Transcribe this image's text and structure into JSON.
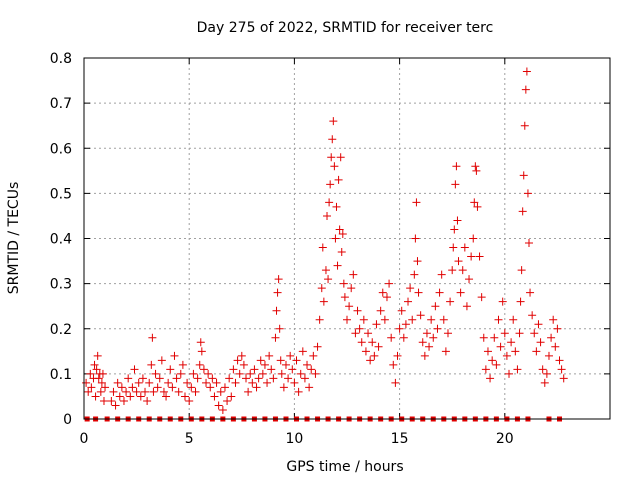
{
  "chart_data": {
    "type": "scatter",
    "title": "Day 275 of 2022, SRMTID for receiver terc",
    "xlabel": "GPS time / hours",
    "ylabel": "SRMTID / TECUs",
    "xlim": [
      0,
      25
    ],
    "ylim": [
      0,
      0.8
    ],
    "xticks": [
      0,
      5,
      10,
      15,
      20
    ],
    "yticks": [
      0,
      0.1,
      0.2,
      0.3,
      0.4,
      0.5,
      0.6,
      0.7,
      0.8
    ],
    "xtick_labels": [
      "0",
      "5",
      "10",
      "15",
      "20"
    ],
    "ytick_labels": [
      "0",
      "0.1",
      "0.2",
      "0.3",
      "0.4",
      "0.5",
      "0.6",
      "0.7",
      "0.8"
    ],
    "grid": true,
    "marker_color": "#e00000",
    "series": [
      {
        "name": "SRMTID",
        "marker": "plus",
        "points": [
          [
            0.1,
            0.08
          ],
          [
            0.2,
            0.06
          ],
          [
            0.3,
            0.1
          ],
          [
            0.35,
            0.07
          ],
          [
            0.45,
            0.09
          ],
          [
            0.5,
            0.12
          ],
          [
            0.55,
            0.05
          ],
          [
            0.6,
            0.11
          ],
          [
            0.65,
            0.14
          ],
          [
            0.7,
            0.09
          ],
          [
            0.75,
            0.1
          ],
          [
            0.8,
            0.06
          ],
          [
            0.85,
            0.08
          ],
          [
            0.9,
            0.1
          ],
          [
            0.95,
            0.04
          ],
          [
            1.0,
            0.07
          ],
          [
            1.3,
            0.04
          ],
          [
            1.4,
            0.06
          ],
          [
            1.5,
            0.03
          ],
          [
            1.6,
            0.08
          ],
          [
            1.7,
            0.05
          ],
          [
            1.8,
            0.07
          ],
          [
            1.9,
            0.04
          ],
          [
            2.0,
            0.06
          ],
          [
            2.1,
            0.09
          ],
          [
            2.2,
            0.05
          ],
          [
            2.3,
            0.07
          ],
          [
            2.4,
            0.11
          ],
          [
            2.5,
            0.06
          ],
          [
            2.6,
            0.08
          ],
          [
            2.7,
            0.05
          ],
          [
            2.8,
            0.09
          ],
          [
            2.9,
            0.06
          ],
          [
            3.0,
            0.04
          ],
          [
            3.1,
            0.08
          ],
          [
            3.2,
            0.12
          ],
          [
            3.25,
            0.18
          ],
          [
            3.3,
            0.06
          ],
          [
            3.4,
            0.1
          ],
          [
            3.5,
            0.07
          ],
          [
            3.6,
            0.09
          ],
          [
            3.7,
            0.13
          ],
          [
            3.8,
            0.06
          ],
          [
            3.9,
            0.05
          ],
          [
            4.0,
            0.08
          ],
          [
            4.1,
            0.11
          ],
          [
            4.2,
            0.07
          ],
          [
            4.3,
            0.14
          ],
          [
            4.4,
            0.09
          ],
          [
            4.5,
            0.06
          ],
          [
            4.6,
            0.1
          ],
          [
            4.7,
            0.12
          ],
          [
            4.8,
            0.05
          ],
          [
            4.9,
            0.08
          ],
          [
            5.0,
            0.04
          ],
          [
            5.1,
            0.07
          ],
          [
            5.2,
            0.1
          ],
          [
            5.3,
            0.06
          ],
          [
            5.4,
            0.09
          ],
          [
            5.5,
            0.12
          ],
          [
            5.55,
            0.17
          ],
          [
            5.6,
            0.15
          ],
          [
            5.7,
            0.11
          ],
          [
            5.8,
            0.08
          ],
          [
            5.9,
            0.1
          ],
          [
            6.0,
            0.07
          ],
          [
            6.1,
            0.09
          ],
          [
            6.2,
            0.05
          ],
          [
            6.3,
            0.08
          ],
          [
            6.4,
            0.03
          ],
          [
            6.5,
            0.06
          ],
          [
            6.6,
            0.02
          ],
          [
            6.7,
            0.07
          ],
          [
            6.8,
            0.04
          ],
          [
            6.9,
            0.09
          ],
          [
            7.0,
            0.05
          ],
          [
            7.1,
            0.11
          ],
          [
            7.2,
            0.08
          ],
          [
            7.3,
            0.13
          ],
          [
            7.4,
            0.1
          ],
          [
            7.5,
            0.14
          ],
          [
            7.6,
            0.12
          ],
          [
            7.7,
            0.09
          ],
          [
            7.8,
            0.06
          ],
          [
            7.9,
            0.1
          ],
          [
            8.0,
            0.08
          ],
          [
            8.1,
            0.11
          ],
          [
            8.2,
            0.07
          ],
          [
            8.3,
            0.09
          ],
          [
            8.4,
            0.13
          ],
          [
            8.5,
            0.1
          ],
          [
            8.6,
            0.12
          ],
          [
            8.7,
            0.08
          ],
          [
            8.8,
            0.14
          ],
          [
            8.9,
            0.11
          ],
          [
            9.0,
            0.09
          ],
          [
            9.1,
            0.18
          ],
          [
            9.15,
            0.24
          ],
          [
            9.2,
            0.28
          ],
          [
            9.25,
            0.31
          ],
          [
            9.3,
            0.2
          ],
          [
            9.35,
            0.13
          ],
          [
            9.4,
            0.1
          ],
          [
            9.5,
            0.07
          ],
          [
            9.6,
            0.12
          ],
          [
            9.7,
            0.09
          ],
          [
            9.8,
            0.14
          ],
          [
            9.9,
            0.11
          ],
          [
            10.0,
            0.08
          ],
          [
            10.1,
            0.13
          ],
          [
            10.2,
            0.06
          ],
          [
            10.3,
            0.1
          ],
          [
            10.4,
            0.15
          ],
          [
            10.5,
            0.09
          ],
          [
            10.6,
            0.12
          ],
          [
            10.7,
            0.07
          ],
          [
            10.8,
            0.11
          ],
          [
            10.9,
            0.14
          ],
          [
            11.0,
            0.1
          ],
          [
            11.1,
            0.16
          ],
          [
            11.2,
            0.22
          ],
          [
            11.3,
            0.29
          ],
          [
            11.35,
            0.38
          ],
          [
            11.4,
            0.26
          ],
          [
            11.5,
            0.33
          ],
          [
            11.55,
            0.45
          ],
          [
            11.6,
            0.31
          ],
          [
            11.65,
            0.48
          ],
          [
            11.7,
            0.52
          ],
          [
            11.75,
            0.58
          ],
          [
            11.8,
            0.62
          ],
          [
            11.85,
            0.66
          ],
          [
            11.9,
            0.56
          ],
          [
            11.95,
            0.4
          ],
          [
            12.0,
            0.47
          ],
          [
            12.05,
            0.34
          ],
          [
            12.1,
            0.53
          ],
          [
            12.15,
            0.42
          ],
          [
            12.2,
            0.58
          ],
          [
            12.25,
            0.37
          ],
          [
            12.3,
            0.41
          ],
          [
            12.35,
            0.3
          ],
          [
            12.4,
            0.27
          ],
          [
            12.5,
            0.22
          ],
          [
            12.6,
            0.25
          ],
          [
            12.7,
            0.29
          ],
          [
            12.8,
            0.32
          ],
          [
            12.9,
            0.19
          ],
          [
            13.0,
            0.24
          ],
          [
            13.1,
            0.2
          ],
          [
            13.2,
            0.17
          ],
          [
            13.3,
            0.22
          ],
          [
            13.4,
            0.15
          ],
          [
            13.5,
            0.19
          ],
          [
            13.6,
            0.13
          ],
          [
            13.7,
            0.17
          ],
          [
            13.8,
            0.14
          ],
          [
            13.9,
            0.21
          ],
          [
            14.0,
            0.16
          ],
          [
            14.1,
            0.24
          ],
          [
            14.2,
            0.28
          ],
          [
            14.3,
            0.22
          ],
          [
            14.4,
            0.27
          ],
          [
            14.5,
            0.3
          ],
          [
            14.6,
            0.18
          ],
          [
            14.7,
            0.12
          ],
          [
            14.8,
            0.08
          ],
          [
            14.9,
            0.14
          ],
          [
            15.0,
            0.2
          ],
          [
            15.1,
            0.24
          ],
          [
            15.2,
            0.18
          ],
          [
            15.3,
            0.21
          ],
          [
            15.4,
            0.26
          ],
          [
            15.5,
            0.29
          ],
          [
            15.6,
            0.22
          ],
          [
            15.7,
            0.32
          ],
          [
            15.75,
            0.4
          ],
          [
            15.8,
            0.48
          ],
          [
            15.85,
            0.35
          ],
          [
            15.9,
            0.28
          ],
          [
            16.0,
            0.23
          ],
          [
            16.1,
            0.17
          ],
          [
            16.2,
            0.14
          ],
          [
            16.3,
            0.19
          ],
          [
            16.4,
            0.16
          ],
          [
            16.5,
            0.22
          ],
          [
            16.6,
            0.18
          ],
          [
            16.7,
            0.25
          ],
          [
            16.8,
            0.2
          ],
          [
            16.9,
            0.28
          ],
          [
            17.0,
            0.32
          ],
          [
            17.1,
            0.22
          ],
          [
            17.2,
            0.15
          ],
          [
            17.3,
            0.19
          ],
          [
            17.4,
            0.26
          ],
          [
            17.5,
            0.33
          ],
          [
            17.55,
            0.38
          ],
          [
            17.6,
            0.42
          ],
          [
            17.65,
            0.52
          ],
          [
            17.7,
            0.56
          ],
          [
            17.75,
            0.44
          ],
          [
            17.8,
            0.35
          ],
          [
            17.9,
            0.28
          ],
          [
            18.0,
            0.33
          ],
          [
            18.1,
            0.38
          ],
          [
            18.2,
            0.25
          ],
          [
            18.3,
            0.31
          ],
          [
            18.4,
            0.36
          ],
          [
            18.5,
            0.4
          ],
          [
            18.55,
            0.48
          ],
          [
            18.6,
            0.56
          ],
          [
            18.65,
            0.55
          ],
          [
            18.7,
            0.47
          ],
          [
            18.8,
            0.36
          ],
          [
            18.9,
            0.27
          ],
          [
            19.0,
            0.18
          ],
          [
            19.1,
            0.11
          ],
          [
            19.2,
            0.15
          ],
          [
            19.3,
            0.09
          ],
          [
            19.4,
            0.13
          ],
          [
            19.5,
            0.18
          ],
          [
            19.6,
            0.12
          ],
          [
            19.7,
            0.22
          ],
          [
            19.8,
            0.16
          ],
          [
            19.9,
            0.26
          ],
          [
            20.0,
            0.19
          ],
          [
            20.1,
            0.14
          ],
          [
            20.2,
            0.1
          ],
          [
            20.3,
            0.17
          ],
          [
            20.4,
            0.22
          ],
          [
            20.5,
            0.15
          ],
          [
            20.6,
            0.11
          ],
          [
            20.7,
            0.19
          ],
          [
            20.75,
            0.26
          ],
          [
            20.8,
            0.33
          ],
          [
            20.85,
            0.46
          ],
          [
            20.9,
            0.54
          ],
          [
            20.95,
            0.65
          ],
          [
            21.0,
            0.73
          ],
          [
            21.05,
            0.77
          ],
          [
            21.1,
            0.5
          ],
          [
            21.15,
            0.39
          ],
          [
            21.2,
            0.28
          ],
          [
            21.3,
            0.23
          ],
          [
            21.4,
            0.19
          ],
          [
            21.5,
            0.15
          ],
          [
            21.6,
            0.21
          ],
          [
            21.7,
            0.17
          ],
          [
            21.8,
            0.11
          ],
          [
            21.9,
            0.08
          ],
          [
            22.0,
            0.1
          ],
          [
            22.1,
            0.14
          ],
          [
            22.2,
            0.18
          ],
          [
            22.3,
            0.22
          ],
          [
            22.4,
            0.16
          ],
          [
            22.5,
            0.2
          ],
          [
            22.6,
            0.13
          ],
          [
            22.7,
            0.11
          ],
          [
            22.8,
            0.09
          ]
        ]
      },
      {
        "name": "baseline markers",
        "marker": "square",
        "points": [
          [
            0.15,
            0
          ],
          [
            0.55,
            0
          ],
          [
            1.1,
            0
          ],
          [
            1.6,
            0
          ],
          [
            2.1,
            0
          ],
          [
            2.6,
            0
          ],
          [
            3.1,
            0
          ],
          [
            3.6,
            0
          ],
          [
            4.1,
            0
          ],
          [
            4.6,
            0
          ],
          [
            5.1,
            0
          ],
          [
            5.6,
            0
          ],
          [
            6.1,
            0
          ],
          [
            6.6,
            0
          ],
          [
            7.1,
            0
          ],
          [
            7.6,
            0
          ],
          [
            8.1,
            0
          ],
          [
            8.6,
            0
          ],
          [
            9.1,
            0
          ],
          [
            9.6,
            0
          ],
          [
            10.1,
            0
          ],
          [
            10.6,
            0
          ],
          [
            11.1,
            0
          ],
          [
            11.6,
            0
          ],
          [
            12.1,
            0
          ],
          [
            12.6,
            0
          ],
          [
            13.1,
            0
          ],
          [
            13.6,
            0
          ],
          [
            14.1,
            0
          ],
          [
            14.6,
            0
          ],
          [
            15.1,
            0
          ],
          [
            15.6,
            0
          ],
          [
            16.1,
            0
          ],
          [
            16.6,
            0
          ],
          [
            17.1,
            0
          ],
          [
            17.6,
            0
          ],
          [
            18.1,
            0
          ],
          [
            18.6,
            0
          ],
          [
            19.1,
            0
          ],
          [
            19.6,
            0
          ],
          [
            20.1,
            0
          ],
          [
            20.6,
            0
          ],
          [
            21.1,
            0
          ],
          [
            22.1,
            0
          ],
          [
            22.6,
            0
          ]
        ]
      }
    ]
  }
}
